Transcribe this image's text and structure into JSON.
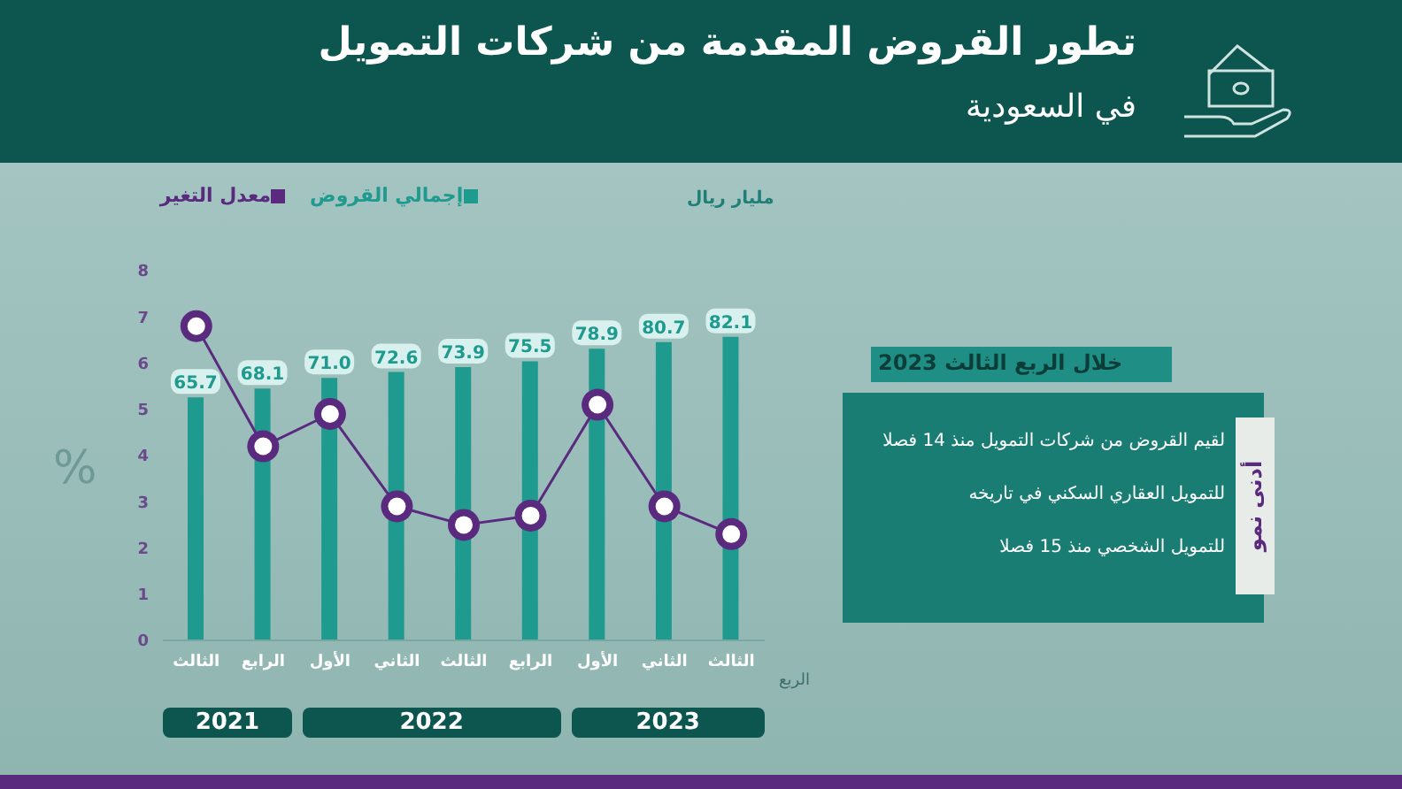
{
  "chart_data": {
    "type": "bar",
    "title": "تطور القروض المقدمة من شركات التمويل",
    "subtitle": "في السعودية",
    "xlabel": "الربع",
    "ylabel": "%",
    "y2label": "مليار ريال",
    "categories": [
      "الثالث",
      "الرابع",
      "الأول",
      "الثاني",
      "الثالث",
      "الرابع",
      "الأول",
      "الثاني",
      "الثالث"
    ],
    "series": [
      {
        "name": "إجمالي القروض",
        "axis": "y2",
        "color": "#1f9a8e",
        "values": [
          65.7,
          68.1,
          71.0,
          72.6,
          73.9,
          75.5,
          78.9,
          80.7,
          82.1
        ],
        "value_labels": [
          "65.7",
          "68.1",
          "71.0",
          "72.6",
          "73.9",
          "75.5",
          "78.9",
          "80.7",
          "82.1"
        ]
      },
      {
        "name": "معدل التغير",
        "type": "line",
        "color": "#5a2a7f",
        "values": [
          6.8,
          4.2,
          4.9,
          2.9,
          2.5,
          2.7,
          5.1,
          2.9,
          2.3
        ]
      }
    ],
    "ylim": [
      0,
      8
    ],
    "yticks": [
      0,
      1,
      2,
      3,
      4,
      5,
      6,
      7,
      8
    ],
    "marker": "circle",
    "legend": "top",
    "grid": false,
    "annotations": [
      "2021",
      "2022",
      "2023",
      "خلال الربع الثالث 2023",
      "أدنى نمو",
      "لقيم القروض من شركات التمويل منذ 14 فصلا",
      "للتمويل العقاري السكني في تاريخه",
      "للتمويل الشخصي منذ 15 فصلا"
    ]
  }
}
